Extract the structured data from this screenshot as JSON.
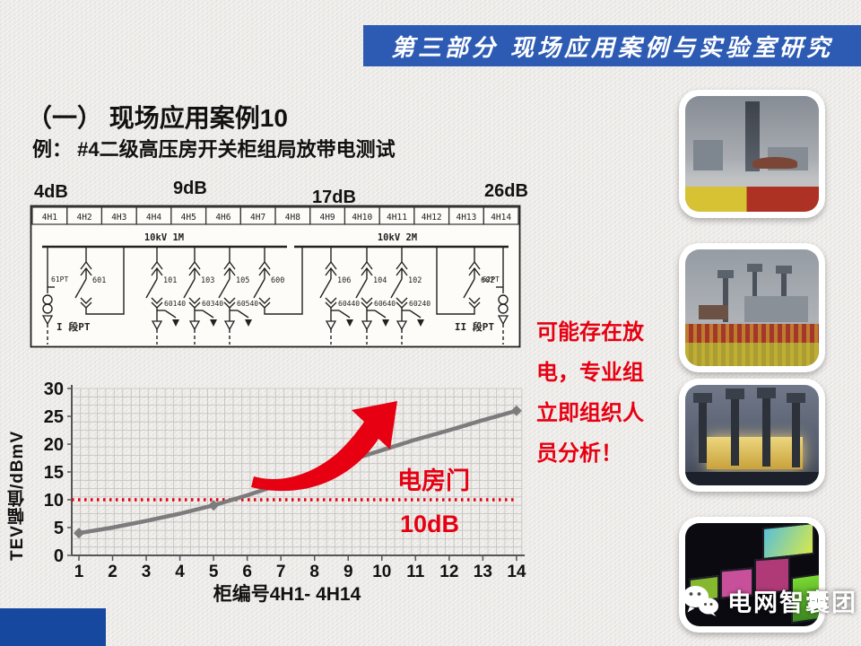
{
  "banner": {
    "text": "第三部分 现场应用案例与实验室研究",
    "bg": "#2d5bb4"
  },
  "title": "（一） 现场应用案例10",
  "subtitle": "例： #4二级高压房开关柜组局放带电测试",
  "db_labels": [
    "4dB",
    "9dB",
    "17dB",
    "26dB"
  ],
  "diagram": {
    "cells": [
      "4H1",
      "4H2",
      "4H3",
      "4H4",
      "4H5",
      "4H6",
      "4H7",
      "4H8",
      "4H9",
      "4H10",
      "4H11",
      "4H12",
      "4H13",
      "4H14"
    ],
    "bus_labels": [
      "10kV 1M",
      "10kV 2M"
    ],
    "feeders": [
      {
        "label": "601"
      },
      {
        "label": "101",
        "switch": "60140"
      },
      {
        "label": "103",
        "switch": "60340"
      },
      {
        "label": "105",
        "switch": "60540"
      },
      {
        "label": "600"
      },
      {
        "label": "106",
        "switch": "60440"
      },
      {
        "label": "104",
        "switch": "60640"
      },
      {
        "label": "102",
        "switch": "60240"
      },
      {
        "label": "602"
      }
    ],
    "pt_left_tag": "61PT",
    "pt_right_tag": "62PT",
    "pt_left": "I 段PT",
    "pt_right": "II 段PT"
  },
  "chart_data": {
    "type": "line",
    "x": [
      1,
      2,
      3,
      4,
      5,
      6,
      7,
      8,
      9,
      10,
      11,
      12,
      13,
      14
    ],
    "values": [
      4,
      5,
      6.2,
      7.5,
      9,
      10.8,
      12.8,
      14.9,
      17,
      18.9,
      20.8,
      22.5,
      24.3,
      26
    ],
    "labeled_points": [
      {
        "x": 1,
        "y": 4,
        "label": "4dB"
      },
      {
        "x": 5,
        "y": 9,
        "label": "9dB"
      },
      {
        "x": 9,
        "y": 17,
        "label": "17dB"
      },
      {
        "x": 14,
        "y": 26,
        "label": "26dB"
      }
    ],
    "marker_indices": [
      0,
      4,
      8,
      13
    ],
    "ylabel": "TEV幅值/dBmV",
    "xlabel": "柜编号4H1- 4H14",
    "yticks": [
      0,
      5,
      10,
      15,
      20,
      25,
      30
    ],
    "ylim": [
      0,
      30
    ],
    "grid": "fine-mesh",
    "line_color": "#7c7c7c",
    "threshold": {
      "value": 10,
      "color": "#e60012",
      "label_line1": "电房门",
      "label_line2": "10dB"
    }
  },
  "alert": {
    "color": "#e60012",
    "lines": [
      "可能存在放",
      "电，专业组",
      "立即组织人",
      "员分析！"
    ]
  },
  "watermark": {
    "text": "电网智囊团"
  },
  "corner_color": "#15489e"
}
